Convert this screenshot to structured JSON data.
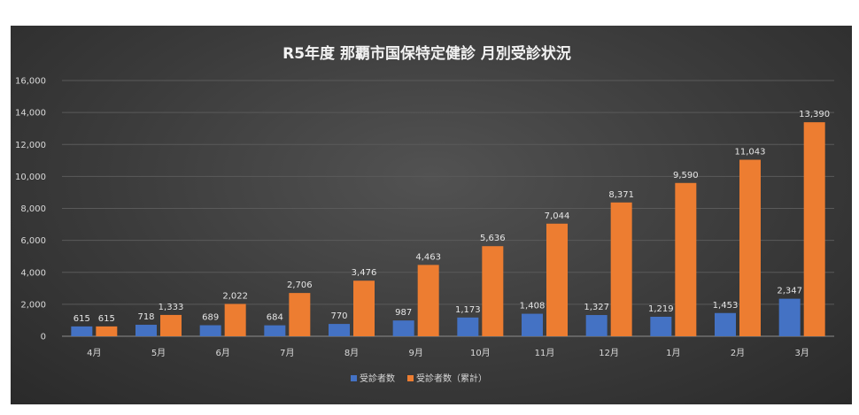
{
  "chart_data": {
    "type": "bar",
    "title": "R5年度 那覇市国保特定健診 月別受診状況",
    "categories": [
      "4月",
      "5月",
      "6月",
      "7月",
      "8月",
      "9月",
      "10月",
      "11月",
      "12月",
      "1月",
      "2月",
      "3月"
    ],
    "series": [
      {
        "name": "受診者数",
        "color": "#4472c4",
        "values": [
          615,
          718,
          689,
          684,
          770,
          987,
          1173,
          1408,
          1327,
          1219,
          1453,
          2347
        ]
      },
      {
        "name": "受診者数（累計）",
        "color": "#ed7d31",
        "values": [
          615,
          1333,
          2022,
          2706,
          3476,
          4463,
          5636,
          7044,
          8371,
          9590,
          11043,
          13390
        ]
      }
    ],
    "y_ticks": [
      "0",
      "2,000",
      "4,000",
      "6,000",
      "8,000",
      "10,000",
      "12,000",
      "14,000",
      "16,000"
    ],
    "ylim": [
      0,
      16000
    ],
    "legend_position": "bottom",
    "grid": true
  }
}
